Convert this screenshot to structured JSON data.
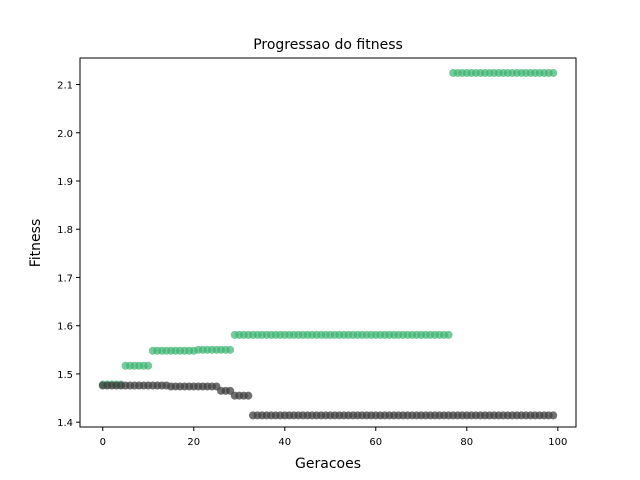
{
  "chart_data": {
    "type": "scatter",
    "title": "Progressao do fitness",
    "xlabel": "Geracoes",
    "ylabel": "Fitness",
    "xlim": [
      -5,
      104
    ],
    "ylim": [
      1.39,
      2.155
    ],
    "xticks": [
      0,
      20,
      40,
      60,
      80,
      100
    ],
    "yticks": [
      1.4,
      1.5,
      1.6,
      1.7,
      1.8,
      1.9,
      2.0,
      2.1
    ],
    "grid": false,
    "series": [
      {
        "color": "#3cb371",
        "alpha": 0.7,
        "segments": [
          {
            "x_from": 0,
            "x_to": 4,
            "y": 1.478
          },
          {
            "x_from": 5,
            "x_to": 10,
            "y": 1.517
          },
          {
            "x_from": 11,
            "x_to": 20,
            "y": 1.548
          },
          {
            "x_from": 21,
            "x_to": 28,
            "y": 1.55
          },
          {
            "x_from": 29,
            "x_to": 76,
            "y": 1.581
          },
          {
            "x_from": 77,
            "x_to": 99,
            "y": 2.124
          }
        ]
      },
      {
        "color": "#404040",
        "alpha": 0.75,
        "segments": [
          {
            "x_from": 0,
            "x_to": 14,
            "y": 1.476
          },
          {
            "x_from": 15,
            "x_to": 25,
            "y": 1.474
          },
          {
            "x_from": 26,
            "x_to": 28,
            "y": 1.465
          },
          {
            "x_from": 29,
            "x_to": 32,
            "y": 1.455
          },
          {
            "x_from": 33,
            "x_to": 99,
            "y": 1.414
          }
        ]
      }
    ]
  }
}
